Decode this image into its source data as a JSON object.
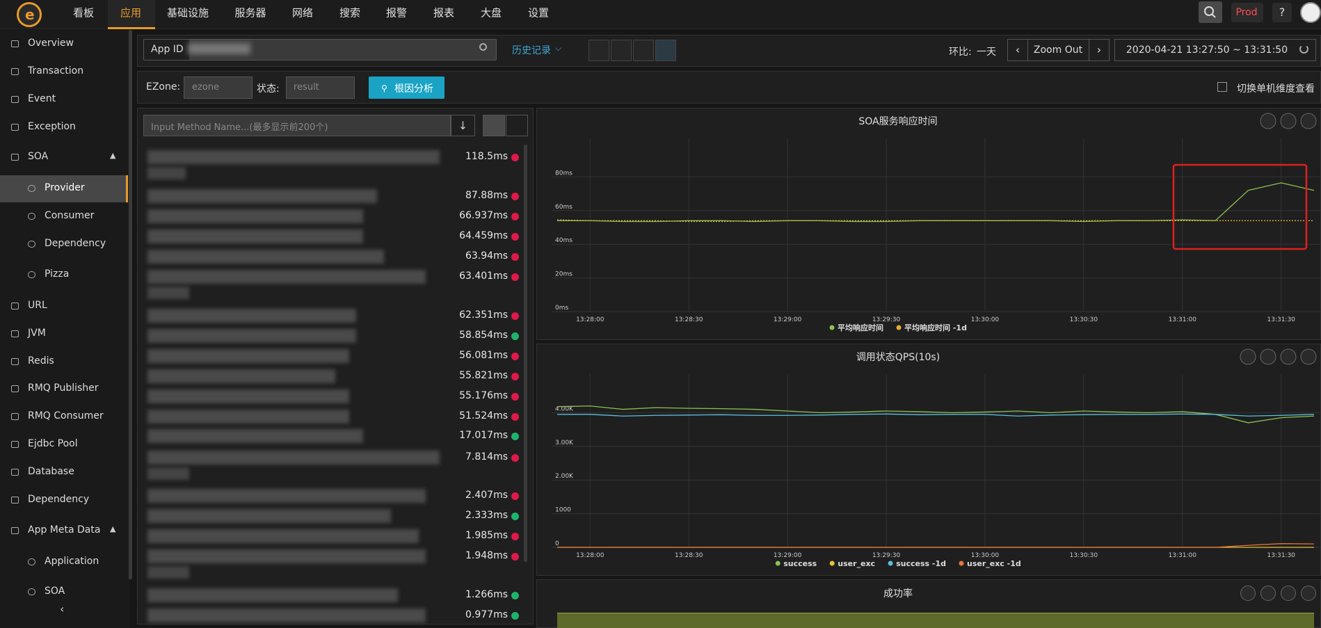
{
  "nav": {
    "items": [
      "看板",
      "应用",
      "基础设施",
      "服务器",
      "网络",
      "搜索",
      "报警",
      "报表",
      "大盘",
      "设置"
    ],
    "active": 1,
    "env": "Prod"
  },
  "sidebar": {
    "items": [
      {
        "label": "Overview",
        "level": 0
      },
      {
        "label": "Transaction",
        "level": 0
      },
      {
        "label": "Event",
        "level": 0
      },
      {
        "label": "Exception",
        "level": 0
      },
      {
        "label": "SOA",
        "level": 0,
        "expanded": true
      },
      {
        "label": "Provider",
        "level": 1,
        "active": true
      },
      {
        "label": "Consumer",
        "level": 1
      },
      {
        "label": "Dependency",
        "level": 1
      },
      {
        "label": "Pizza",
        "level": 1
      },
      {
        "label": "URL",
        "level": 0
      },
      {
        "label": "JVM",
        "level": 0
      },
      {
        "label": "Redis",
        "level": 0
      },
      {
        "label": "RMQ Publisher",
        "level": 0
      },
      {
        "label": "RMQ Consumer",
        "level": 0
      },
      {
        "label": "Ejdbc Pool",
        "level": 0
      },
      {
        "label": "Database",
        "level": 0
      },
      {
        "label": "Dependency",
        "level": 0
      },
      {
        "label": "App Meta Data",
        "level": 0,
        "expanded": true
      },
      {
        "label": "Application",
        "level": 1
      },
      {
        "label": "SOA",
        "level": 1
      }
    ]
  },
  "toolbar": {
    "app_id_label": "App ID",
    "history": "历史记录",
    "compare_label": "环比:",
    "compare_value": "一天",
    "zoom": "Zoom Out",
    "time_range": "2020-04-21 13:27:50 ~ 13:31:50"
  },
  "filter": {
    "ezone_label": "EZone:",
    "ezone_placeholder": "ezone",
    "status_label": "状态:",
    "status_placeholder": "result",
    "root_cause": "根因分析",
    "single_machine": "切换单机维度查看"
  },
  "methods": {
    "placeholder": "Input Method Name...(最多显示前200个)",
    "items": [
      {
        "time": "118.5ms",
        "status": "red"
      },
      {
        "time": "87.88ms",
        "status": "red"
      },
      {
        "time": "66.937ms",
        "status": "red"
      },
      {
        "time": "64.459ms",
        "status": "red"
      },
      {
        "time": "63.94ms",
        "status": "red"
      },
      {
        "time": "63.401ms",
        "status": "red"
      },
      {
        "time": "62.351ms",
        "status": "red"
      },
      {
        "time": "58.854ms",
        "status": "green"
      },
      {
        "time": "56.081ms",
        "status": "red"
      },
      {
        "time": "55.821ms",
        "status": "red"
      },
      {
        "time": "55.176ms",
        "status": "red"
      },
      {
        "time": "51.524ms",
        "status": "red"
      },
      {
        "time": "17.017ms",
        "status": "green"
      },
      {
        "time": "7.814ms",
        "status": "red"
      },
      {
        "time": "2.407ms",
        "status": "red"
      },
      {
        "time": "2.333ms",
        "status": "green"
      },
      {
        "time": "1.985ms",
        "status": "red"
      },
      {
        "time": "1.948ms",
        "status": "red"
      },
      {
        "time": "1.266ms",
        "status": "green"
      },
      {
        "time": "0.977ms",
        "status": "green"
      }
    ]
  },
  "chart_data": [
    {
      "type": "line",
      "title": "SOA服务响应时间",
      "x": [
        "13:27:50",
        "13:28:00",
        "13:28:10",
        "13:28:20",
        "13:28:30",
        "13:28:40",
        "13:28:50",
        "13:29:00",
        "13:29:10",
        "13:29:20",
        "13:29:30",
        "13:29:40",
        "13:29:50",
        "13:30:00",
        "13:30:10",
        "13:30:20",
        "13:30:30",
        "13:30:40",
        "13:30:50",
        "13:31:00",
        "13:31:10",
        "13:31:20",
        "13:31:30",
        "13:31:40"
      ],
      "xticks": [
        "13:28:00",
        "13:28:30",
        "13:29:00",
        "13:29:30",
        "13:30:00",
        "13:30:30",
        "13:31:00",
        "13:31:30"
      ],
      "ylim": [
        0,
        100
      ],
      "yticks": [
        {
          "value": 0,
          "label": "0ms"
        },
        {
          "value": 20,
          "label": "20ms"
        },
        {
          "value": 40,
          "label": "40ms"
        },
        {
          "value": 60,
          "label": "60ms"
        },
        {
          "value": 80,
          "label": "80ms"
        }
      ],
      "grid": true,
      "series": [
        {
          "name": "平均响应时间",
          "color": "#8cc152",
          "values": [
            54,
            54,
            53.5,
            53.5,
            54,
            54,
            53.5,
            54,
            54,
            53.5,
            53.5,
            54,
            54,
            54,
            54,
            54,
            53.5,
            54,
            54,
            54.5,
            54,
            72,
            76.5,
            72
          ]
        },
        {
          "name": "平均响应时间 -1d",
          "color": "#e8a838",
          "dashed": true,
          "values": [
            54.5,
            54,
            54,
            54,
            53.5,
            53.5,
            54,
            54,
            54,
            54,
            54,
            54,
            54,
            54,
            54,
            54,
            54,
            54,
            54,
            54,
            54,
            54,
            54,
            54
          ]
        }
      ]
    },
    {
      "type": "line",
      "title": "调用状态QPS(10s)",
      "x": [
        "13:27:50",
        "13:28:00",
        "13:28:10",
        "13:28:20",
        "13:28:30",
        "13:28:40",
        "13:28:50",
        "13:29:00",
        "13:29:10",
        "13:29:20",
        "13:29:30",
        "13:29:40",
        "13:29:50",
        "13:30:00",
        "13:30:10",
        "13:30:20",
        "13:30:30",
        "13:30:40",
        "13:30:50",
        "13:31:00",
        "13:31:10",
        "13:31:20",
        "13:31:30",
        "13:31:40"
      ],
      "xticks": [
        "13:28:00",
        "13:28:30",
        "13:29:00",
        "13:29:30",
        "13:30:00",
        "13:30:30",
        "13:31:00",
        "13:31:30"
      ],
      "ylim": [
        0,
        5000
      ],
      "yticks": [
        0,
        1000,
        {
          "value": 2000,
          "label": "2.00K"
        },
        {
          "value": 3000,
          "label": "3.00K"
        },
        {
          "value": 4000,
          "label": "4.00K"
        }
      ],
      "grid": true,
      "series": [
        {
          "name": "success",
          "color": "#8cc152",
          "values": [
            4180,
            4200,
            4100,
            4150,
            4130,
            4120,
            4100,
            4050,
            4000,
            4020,
            4050,
            4030,
            4000,
            4020,
            4050,
            4000,
            4050,
            4020,
            4000,
            4030,
            3950,
            3700,
            3850,
            3900
          ]
        },
        {
          "name": "user_exc",
          "color": "#e8c238",
          "values": [
            0,
            0,
            0,
            0,
            0,
            0,
            0,
            0,
            0,
            0,
            0,
            0,
            0,
            0,
            0,
            0,
            0,
            0,
            0,
            0,
            0,
            0,
            0,
            0
          ]
        },
        {
          "name": "success -1d",
          "color": "#5bc0de",
          "values": [
            3950,
            3950,
            3900,
            3920,
            3930,
            3940,
            3920,
            3920,
            3930,
            3950,
            3960,
            3940,
            3950,
            3950,
            3900,
            3930,
            3940,
            3950,
            3950,
            3960,
            3950,
            3900,
            3920,
            3950
          ]
        },
        {
          "name": "user_exc -1d",
          "color": "#e8743b",
          "values": [
            0,
            0,
            0,
            0,
            0,
            0,
            0,
            0,
            0,
            0,
            0,
            0,
            0,
            0,
            0,
            0,
            0,
            0,
            0,
            0,
            0,
            60,
            110,
            100
          ]
        }
      ]
    }
  ],
  "success_rate": {
    "title": "成功率"
  }
}
